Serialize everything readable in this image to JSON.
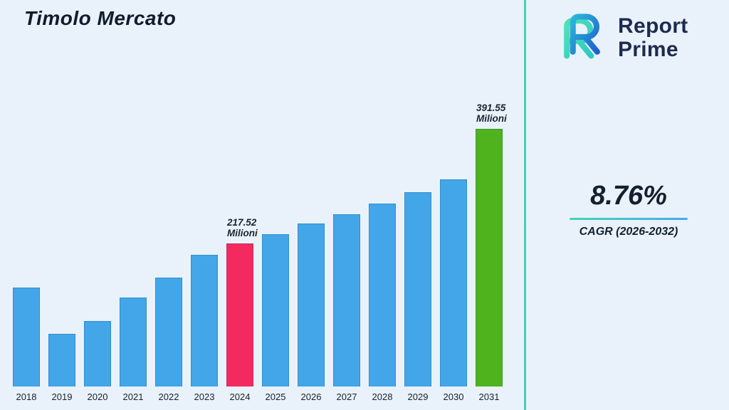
{
  "page": {
    "title": "Timolo Mercato"
  },
  "logo": {
    "name": "Report Prime",
    "line1": "Report",
    "line2": "Prime"
  },
  "stats": {
    "cagr_value": "8.76%",
    "cagr_label": "CAGR (2026-2032)"
  },
  "chart_data": {
    "type": "bar",
    "title": "Timolo Mercato",
    "categories": [
      "2018",
      "2019",
      "2020",
      "2021",
      "2022",
      "2023",
      "2024",
      "2025",
      "2026",
      "2027",
      "2028",
      "2029",
      "2030",
      "2031"
    ],
    "values": [
      150,
      80,
      100,
      135,
      165,
      200,
      217.52,
      232,
      248,
      262,
      278,
      295,
      315,
      391.55
    ],
    "unit": "Milioni",
    "xlabel": "",
    "ylabel": "",
    "ylim": [
      0,
      400
    ],
    "grid": false,
    "legend": false,
    "data_labels": [
      {
        "index": 6,
        "lines": [
          "217.52",
          "Milioni"
        ]
      },
      {
        "index": 13,
        "lines": [
          "391.55",
          "Milioni"
        ]
      }
    ],
    "default_color": "#42a6e8",
    "color_overrides": {
      "6": "#f32a60",
      "13": "#4fb31e"
    }
  },
  "colors": {
    "background": "#e9f2fb",
    "divider": "#3fd6b2",
    "bar_blue": "#42a6e8",
    "bar_pink": "#f32a60",
    "bar_green": "#4fb31e",
    "text_dark": "#14202f",
    "logo_navy": "#1d2b50",
    "accent_teal": "#3fd6b2",
    "accent_blue": "#4aa9e9"
  }
}
